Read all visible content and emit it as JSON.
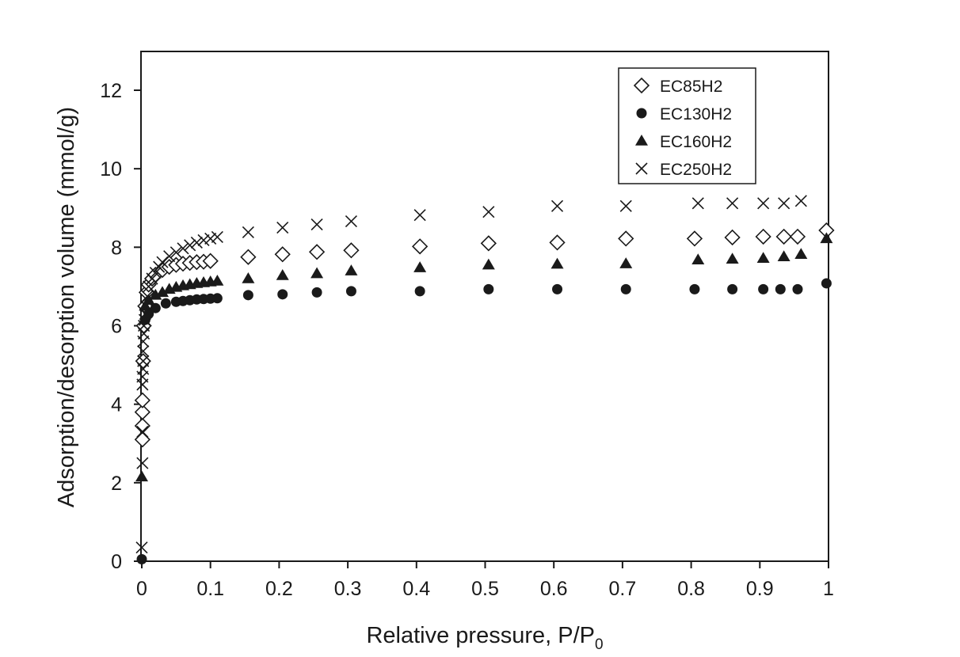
{
  "chart_data": {
    "type": "scatter",
    "xlabel": "Relative pressure, P/P",
    "xlabel_subscript": "0",
    "ylabel": "Adsorption/desorption volume (mmol/g)",
    "xlim": [
      0,
      1
    ],
    "ylim": [
      0,
      13
    ],
    "x_ticks": [
      0,
      0.1,
      0.2,
      0.3,
      0.4,
      0.5,
      0.6,
      0.7,
      0.8,
      0.9,
      1
    ],
    "x_tick_labels": [
      "0",
      "0.1",
      "0.2",
      "0.3",
      "0.4",
      "0.5",
      "0.6",
      "0.7",
      "0.8",
      "0.9",
      "1"
    ],
    "y_ticks": [
      0,
      2,
      4,
      6,
      8,
      10,
      12
    ],
    "y_tick_labels": [
      "0",
      "2",
      "4",
      "6",
      "8",
      "10",
      "12"
    ],
    "grid": false,
    "legend_position": "top-right",
    "series": [
      {
        "name": "EC85H2",
        "marker": "diamond-open",
        "color": "#1a1a1a",
        "points": [
          [
            0.001,
            3.1
          ],
          [
            0.001,
            3.45
          ],
          [
            0.001,
            3.8
          ],
          [
            0.001,
            4.1
          ],
          [
            0.002,
            5.1
          ],
          [
            0.003,
            6.0
          ],
          [
            0.005,
            6.5
          ],
          [
            0.007,
            6.85
          ],
          [
            0.01,
            7.05
          ],
          [
            0.015,
            7.2
          ],
          [
            0.02,
            7.3
          ],
          [
            0.03,
            7.42
          ],
          [
            0.04,
            7.5
          ],
          [
            0.05,
            7.55
          ],
          [
            0.06,
            7.58
          ],
          [
            0.07,
            7.6
          ],
          [
            0.08,
            7.62
          ],
          [
            0.09,
            7.63
          ],
          [
            0.1,
            7.65
          ],
          [
            0.155,
            7.75
          ],
          [
            0.205,
            7.82
          ],
          [
            0.255,
            7.88
          ],
          [
            0.305,
            7.92
          ],
          [
            0.405,
            8.02
          ],
          [
            0.505,
            8.1
          ],
          [
            0.605,
            8.12
          ],
          [
            0.705,
            8.22
          ],
          [
            0.805,
            8.22
          ],
          [
            0.86,
            8.25
          ],
          [
            0.905,
            8.27
          ],
          [
            0.935,
            8.27
          ],
          [
            0.955,
            8.27
          ],
          [
            0.997,
            8.43
          ]
        ]
      },
      {
        "name": "EC130H2",
        "marker": "circle",
        "color": "#1a1a1a",
        "points": [
          [
            0.0,
            0.05
          ],
          [
            0.005,
            6.15
          ],
          [
            0.01,
            6.3
          ],
          [
            0.02,
            6.45
          ],
          [
            0.035,
            6.57
          ],
          [
            0.05,
            6.61
          ],
          [
            0.06,
            6.63
          ],
          [
            0.07,
            6.65
          ],
          [
            0.08,
            6.67
          ],
          [
            0.09,
            6.68
          ],
          [
            0.1,
            6.69
          ],
          [
            0.11,
            6.7
          ],
          [
            0.155,
            6.78
          ],
          [
            0.205,
            6.8
          ],
          [
            0.255,
            6.85
          ],
          [
            0.305,
            6.88
          ],
          [
            0.405,
            6.88
          ],
          [
            0.505,
            6.93
          ],
          [
            0.605,
            6.93
          ],
          [
            0.705,
            6.93
          ],
          [
            0.805,
            6.93
          ],
          [
            0.86,
            6.93
          ],
          [
            0.905,
            6.93
          ],
          [
            0.93,
            6.93
          ],
          [
            0.955,
            6.93
          ],
          [
            0.997,
            7.08
          ]
        ]
      },
      {
        "name": "EC160H2",
        "marker": "triangle",
        "color": "#1a1a1a",
        "points": [
          [
            0.0,
            2.15
          ],
          [
            0.005,
            6.5
          ],
          [
            0.01,
            6.65
          ],
          [
            0.02,
            6.78
          ],
          [
            0.03,
            6.85
          ],
          [
            0.04,
            6.93
          ],
          [
            0.05,
            6.98
          ],
          [
            0.06,
            7.02
          ],
          [
            0.07,
            7.05
          ],
          [
            0.08,
            7.08
          ],
          [
            0.09,
            7.1
          ],
          [
            0.1,
            7.12
          ],
          [
            0.11,
            7.14
          ],
          [
            0.155,
            7.2
          ],
          [
            0.205,
            7.28
          ],
          [
            0.255,
            7.33
          ],
          [
            0.305,
            7.4
          ],
          [
            0.405,
            7.48
          ],
          [
            0.505,
            7.55
          ],
          [
            0.605,
            7.57
          ],
          [
            0.705,
            7.58
          ],
          [
            0.81,
            7.68
          ],
          [
            0.86,
            7.7
          ],
          [
            0.905,
            7.72
          ],
          [
            0.935,
            7.76
          ],
          [
            0.96,
            7.82
          ],
          [
            0.997,
            8.22
          ]
        ]
      },
      {
        "name": "EC250H2",
        "marker": "x",
        "color": "#1a1a1a",
        "points": [
          [
            0.0,
            0.35
          ],
          [
            0.001,
            2.5
          ],
          [
            0.001,
            3.3
          ],
          [
            0.001,
            4.5
          ],
          [
            0.001,
            4.7
          ],
          [
            0.002,
            4.9
          ],
          [
            0.002,
            5.1
          ],
          [
            0.002,
            5.35
          ],
          [
            0.002,
            5.6
          ],
          [
            0.003,
            5.8
          ],
          [
            0.003,
            6.0
          ],
          [
            0.004,
            6.15
          ],
          [
            0.005,
            6.3
          ],
          [
            0.006,
            6.5
          ],
          [
            0.008,
            6.75
          ],
          [
            0.01,
            7.0
          ],
          [
            0.015,
            7.2
          ],
          [
            0.02,
            7.35
          ],
          [
            0.025,
            7.5
          ],
          [
            0.03,
            7.62
          ],
          [
            0.04,
            7.77
          ],
          [
            0.05,
            7.87
          ],
          [
            0.06,
            7.97
          ],
          [
            0.07,
            8.05
          ],
          [
            0.08,
            8.12
          ],
          [
            0.09,
            8.18
          ],
          [
            0.1,
            8.22
          ],
          [
            0.11,
            8.26
          ],
          [
            0.155,
            8.38
          ],
          [
            0.205,
            8.5
          ],
          [
            0.255,
            8.58
          ],
          [
            0.305,
            8.66
          ],
          [
            0.405,
            8.82
          ],
          [
            0.505,
            8.9
          ],
          [
            0.605,
            9.05
          ],
          [
            0.705,
            9.05
          ],
          [
            0.81,
            9.12
          ],
          [
            0.86,
            9.12
          ],
          [
            0.905,
            9.12
          ],
          [
            0.935,
            9.12
          ],
          [
            0.96,
            9.18
          ]
        ]
      }
    ]
  }
}
